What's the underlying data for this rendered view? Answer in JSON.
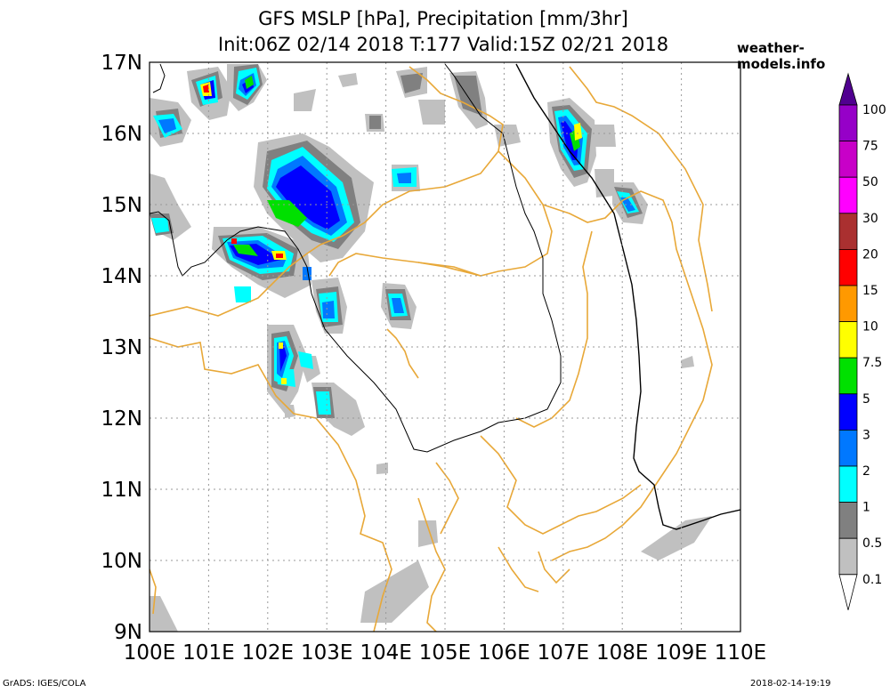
{
  "header": {
    "title_line1": "GFS MSLP [hPa], Precipitation [mm/3hr]",
    "title_line2": "Init:06Z 02/14 2018 T:177 Valid:15Z 02/21 2018",
    "site": "weather-models.info"
  },
  "map": {
    "lat_labels": [
      "17N",
      "16N",
      "15N",
      "14N",
      "13N",
      "12N",
      "11N",
      "10N",
      "9N"
    ],
    "lon_labels": [
      "100E",
      "101E",
      "102E",
      "103E",
      "104E",
      "105E",
      "106E",
      "107E",
      "108E",
      "109E",
      "110E"
    ],
    "lat_range": [
      9,
      17
    ],
    "lon_range": [
      100,
      110
    ],
    "gridlines": true,
    "colors": {
      "border": "#e8a838",
      "coast": "#000000",
      "grid": "#999999"
    }
  },
  "legend": {
    "labels": [
      "100",
      "75",
      "50",
      "30",
      "20",
      "15",
      "10",
      "7.5",
      "5",
      "3",
      "2",
      "1",
      "0.5",
      "0.1"
    ],
    "colors": [
      "#9600c8",
      "#c800c8",
      "#ff00ff",
      "#aa3030",
      "#ff0000",
      "#ff9900",
      "#ffff00",
      "#00e000",
      "#0000ff",
      "#0078ff",
      "#00ffff",
      "#808080",
      "#c0c0c0",
      "#ffffff"
    ],
    "top_color": "#500090"
  },
  "footer": {
    "left": "GrADS: IGES/COLA",
    "right": "2018-02-14-19:19"
  }
}
